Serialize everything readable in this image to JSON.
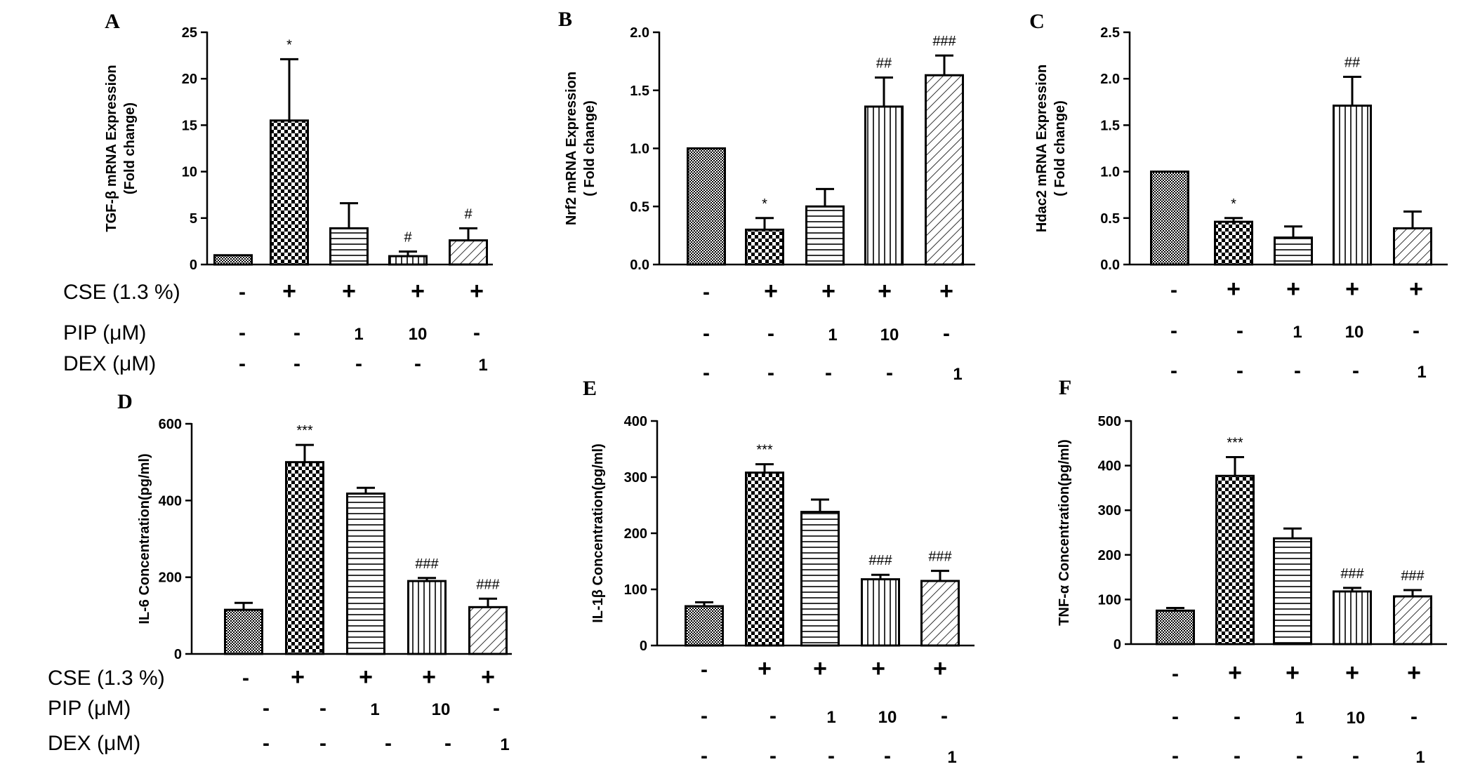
{
  "chart_data": [
    {
      "type": "bar",
      "panel": "A",
      "title": "",
      "ylabel_lines": [
        "TGF-β mRNA Expression",
        "(Fold change)"
      ],
      "ylim": [
        0,
        25
      ],
      "yticks": [
        "0",
        "5",
        "10",
        "15",
        "20",
        "25"
      ],
      "values": [
        1.0,
        15.5,
        3.9,
        0.9,
        2.6
      ],
      "errors": [
        0,
        6.6,
        2.7,
        0.5,
        1.3
      ],
      "significance": [
        "",
        "*",
        "",
        "#",
        "#"
      ],
      "patterns": [
        "dense",
        "checker",
        "hlines",
        "vlines",
        "diag"
      ]
    },
    {
      "type": "bar",
      "panel": "B",
      "title": "",
      "ylabel_lines": [
        "Nrf2 mRNA Expression",
        "( Fold change)"
      ],
      "ylim": [
        0,
        2.0
      ],
      "yticks": [
        "0.0",
        "0.5",
        "1.0",
        "1.5",
        "2.0"
      ],
      "values": [
        1.0,
        0.3,
        0.5,
        1.36,
        1.63
      ],
      "errors": [
        0,
        0.1,
        0.15,
        0.25,
        0.17
      ],
      "significance": [
        "",
        "*",
        "",
        "##",
        "###"
      ],
      "patterns": [
        "dense",
        "checker",
        "hlines",
        "vlines",
        "diag"
      ]
    },
    {
      "type": "bar",
      "panel": "C",
      "title": "",
      "ylabel_lines": [
        "Hdac2 mRNA Expression",
        "( Fold change)"
      ],
      "ylim": [
        0,
        2.5
      ],
      "yticks": [
        "0.0",
        "0.5",
        "1.0",
        "1.5",
        "2.0",
        "2.5"
      ],
      "values": [
        1.0,
        0.46,
        0.29,
        1.71,
        0.39
      ],
      "errors": [
        0,
        0.04,
        0.12,
        0.31,
        0.18
      ],
      "significance": [
        "",
        "*",
        "",
        "##",
        ""
      ],
      "patterns": [
        "dense",
        "checker",
        "hlines",
        "vlines",
        "diag"
      ]
    },
    {
      "type": "bar",
      "panel": "D",
      "title": "",
      "ylabel_lines": [
        "IL-6 Concentration(pg/ml)"
      ],
      "ylim": [
        0,
        600
      ],
      "yticks": [
        "0",
        "200",
        "400",
        "600"
      ],
      "values": [
        115,
        500,
        418,
        190,
        122
      ],
      "errors": [
        18,
        45,
        15,
        8,
        22
      ],
      "significance": [
        "",
        "***",
        "",
        "###",
        "###"
      ],
      "patterns": [
        "dense",
        "checker",
        "hlines",
        "vlines",
        "diag"
      ]
    },
    {
      "type": "bar",
      "panel": "E",
      "title": "",
      "ylabel_lines": [
        "IL-1β Concentration(pg/ml)"
      ],
      "ylim": [
        0,
        400
      ],
      "yticks": [
        "0",
        "100",
        "200",
        "300",
        "400"
      ],
      "values": [
        70,
        308,
        238,
        118,
        115
      ],
      "errors": [
        7,
        15,
        22,
        8,
        18
      ],
      "significance": [
        "",
        "***",
        "",
        "###",
        "###"
      ],
      "patterns": [
        "dense",
        "checker",
        "hlines",
        "vlines",
        "diag"
      ]
    },
    {
      "type": "bar",
      "panel": "F",
      "title": "",
      "ylabel_lines": [
        "TNF-α Concentration(pg/ml)"
      ],
      "ylim": [
        0,
        500
      ],
      "yticks": [
        "0",
        "100",
        "200",
        "300",
        "400",
        "500"
      ],
      "values": [
        75,
        377,
        237,
        118,
        107
      ],
      "errors": [
        6,
        42,
        22,
        8,
        14
      ],
      "significance": [
        "",
        "***",
        "",
        "###",
        "###"
      ],
      "patterns": [
        "dense",
        "checker",
        "hlines",
        "vlines",
        "diag"
      ]
    }
  ],
  "conditions": {
    "row_names": [
      "CSE (1.3 %)",
      "PIP (μM)",
      "DEX (μM)"
    ],
    "cse": [
      "-",
      "+",
      "+",
      "+",
      "+"
    ],
    "pip": [
      "-",
      "-",
      "1",
      "10",
      "-"
    ],
    "dex": [
      "-",
      "-",
      "-",
      "-",
      "1"
    ]
  },
  "colors": {
    "ink": "#000000",
    "background": "#ffffff",
    "bar_fill": "#ffffff"
  }
}
